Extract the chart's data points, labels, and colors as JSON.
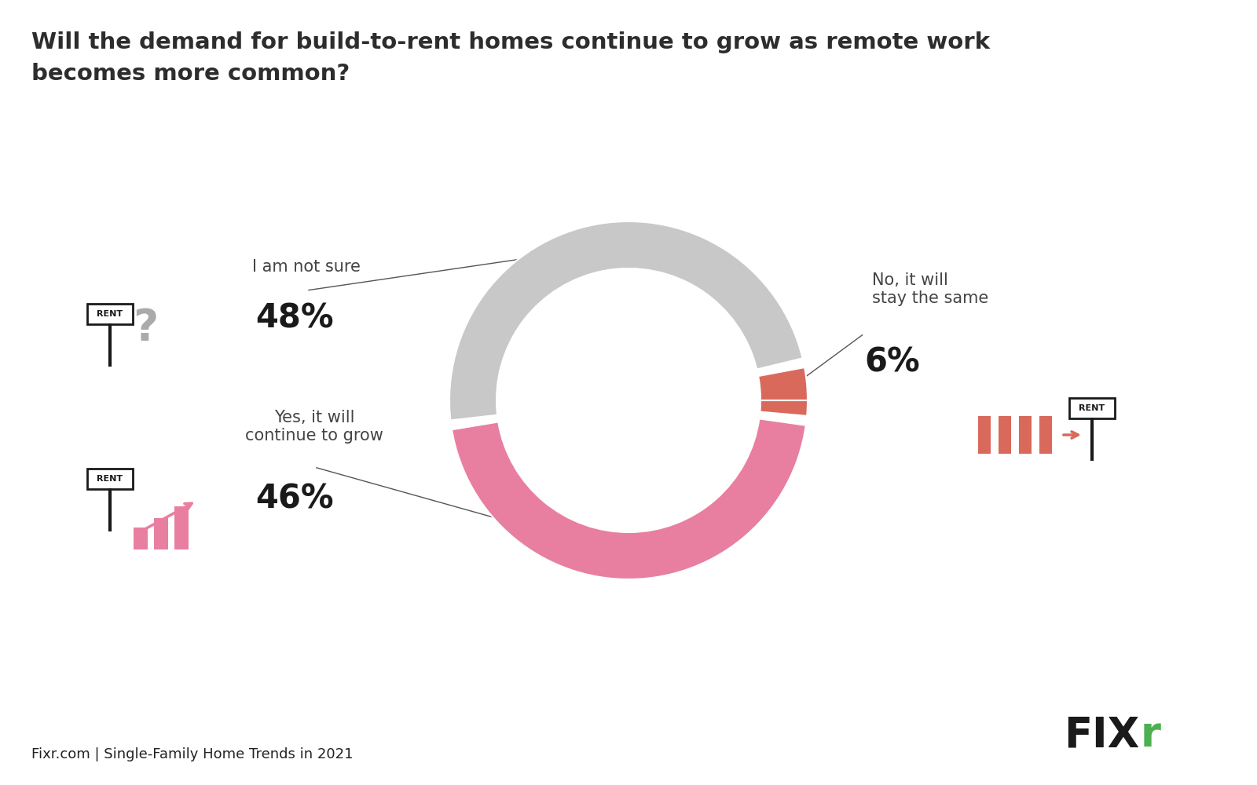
{
  "title_line1": "Will the demand for build-to-rent homes continue to grow as remote work",
  "title_line2": "becomes more common?",
  "title_fontsize": 21,
  "title_color": "#2d2d2d",
  "slices": [
    {
      "label": "I am not sure",
      "pct_str": "48%",
      "color": "#c8c8c8",
      "t1": 13.6,
      "t2": 186.4
    },
    {
      "label": "Yes, it will\ncontinue to grow",
      "pct_str": "46%",
      "color": "#e87fa0",
      "t1": 189.4,
      "t2": 352.0
    },
    {
      "label": "No, it will\nstay the same",
      "pct_str": "6%",
      "color": "#d9695a",
      "t1": 355.0,
      "t2": 370.6
    }
  ],
  "r_outer": 0.38,
  "r_inner": 0.28,
  "footer": "Fixr.com | Single-Family Home Trends in 2021",
  "footer_fontsize": 13,
  "bg_color": "#ffffff",
  "label_color": "#444444",
  "pct_fontsize": 30,
  "label_fontsize": 15
}
